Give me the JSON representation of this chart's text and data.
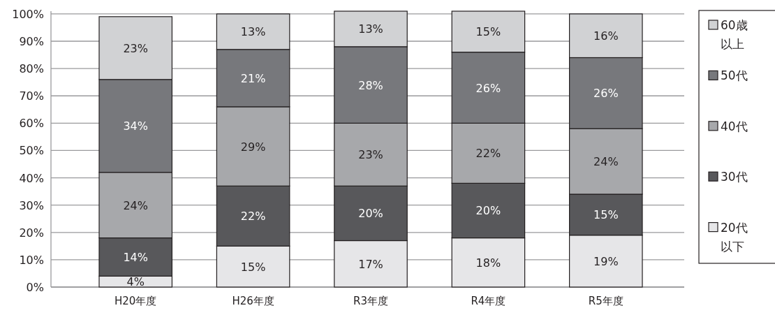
{
  "chart_data": {
    "type": "bar",
    "stacked": true,
    "categories": [
      "H20年度",
      "H26年度",
      "R3年度",
      "R4年度",
      "R5年度"
    ],
    "series": [
      {
        "name": "20代以下",
        "color": "#e6e6e8",
        "values": [
          4,
          15,
          17,
          18,
          19
        ],
        "value_labels": [
          "4%",
          "15%",
          "17%",
          "18%",
          "19%"
        ]
      },
      {
        "name": "30代",
        "color": "#58585b",
        "values": [
          14,
          22,
          20,
          20,
          15
        ],
        "value_labels": [
          "14%",
          "22%",
          "20%",
          "20%",
          "15%"
        ]
      },
      {
        "name": "40代",
        "color": "#a7a8ab",
        "values": [
          24,
          29,
          23,
          22,
          24
        ],
        "value_labels": [
          "24%",
          "29%",
          "23%",
          "22%",
          "24%"
        ]
      },
      {
        "name": "50代",
        "color": "#77787c",
        "values": [
          34,
          21,
          28,
          26,
          26
        ],
        "value_labels": [
          "34%",
          "21%",
          "28%",
          "26%",
          "26%"
        ]
      },
      {
        "name": "60歳以上",
        "color": "#d1d2d4",
        "values": [
          23,
          13,
          13,
          15,
          16
        ],
        "value_labels": [
          "23%",
          "13%",
          "13%",
          "15%",
          "16%"
        ]
      }
    ],
    "ylim": [
      0,
      101
    ],
    "yticks": [
      {
        "value": 0,
        "label": "0%"
      },
      {
        "value": 10,
        "label": "10%"
      },
      {
        "value": 20,
        "label": "20%"
      },
      {
        "value": 30,
        "label": "30%"
      },
      {
        "value": 40,
        "label": "40%"
      },
      {
        "value": 50,
        "label": "50%"
      },
      {
        "value": 60,
        "label": "60%"
      },
      {
        "value": 70,
        "label": "70%"
      },
      {
        "value": 80,
        "label": "80%"
      },
      {
        "value": 90,
        "label": "90%"
      },
      {
        "value": 100,
        "label": "100%"
      }
    ],
    "grid": "y",
    "legend": "right"
  }
}
